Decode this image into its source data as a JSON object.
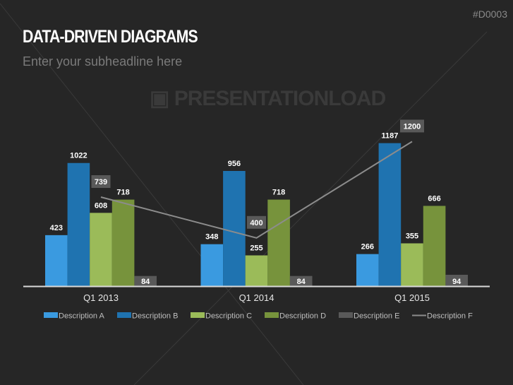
{
  "header": {
    "code": "#D0003",
    "title": "DATA-DRIVEN DIAGRAMS",
    "subtitle": "Enter your subheadline here"
  },
  "watermark": "PRESENTATIONLOAD",
  "chart_data": {
    "type": "bar",
    "categories": [
      "Q1 2013",
      "Q1 2014",
      "Q1 2015"
    ],
    "series": [
      {
        "name": "Description A",
        "kind": "bar",
        "color": "#3a9ae0",
        "values": [
          423,
          348,
          266
        ]
      },
      {
        "name": "Description B",
        "kind": "bar",
        "color": "#1f73b0",
        "values": [
          1022,
          956,
          1187
        ]
      },
      {
        "name": "Description C",
        "kind": "bar",
        "color": "#9bbb59",
        "values": [
          608,
          255,
          355
        ]
      },
      {
        "name": "Description D",
        "kind": "bar",
        "color": "#77933c",
        "values": [
          718,
          718,
          666
        ]
      },
      {
        "name": "Description E",
        "kind": "bar",
        "color": "#595959",
        "values": [
          84,
          84,
          94
        ]
      },
      {
        "name": "Description F",
        "kind": "line",
        "color": "#8c8c8c",
        "values": [
          739,
          400,
          1200
        ]
      }
    ],
    "ylim": [
      0,
      1250
    ],
    "grid": false,
    "legend": "bottom"
  }
}
